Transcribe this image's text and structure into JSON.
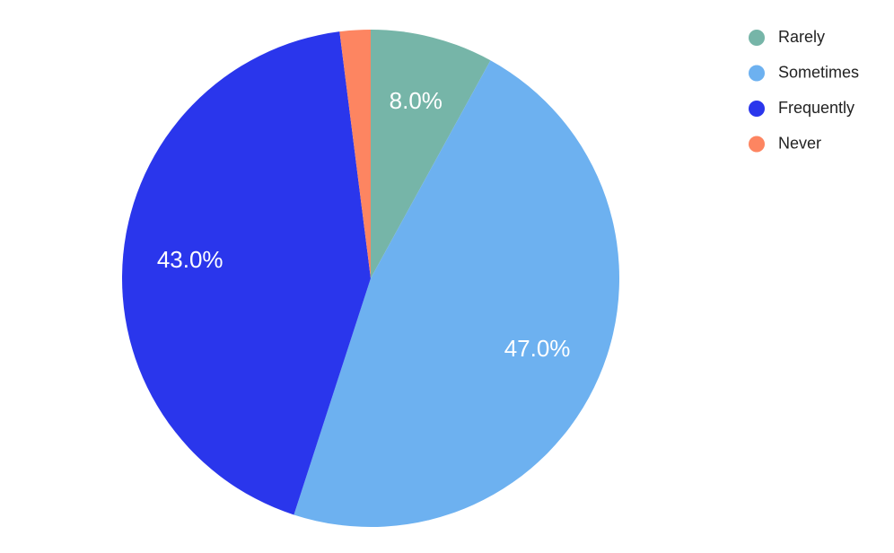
{
  "chart_data": {
    "type": "pie",
    "categories": [
      "Rarely",
      "Sometimes",
      "Frequently",
      "Never"
    ],
    "values": [
      8,
      47,
      43,
      2
    ],
    "value_labels": [
      "8.0%",
      "47.0%",
      "43.0%",
      null
    ],
    "colors": [
      "#76b5a8",
      "#6db1f0",
      "#2a36ec",
      "#fd8561"
    ],
    "legend": "top-right"
  }
}
